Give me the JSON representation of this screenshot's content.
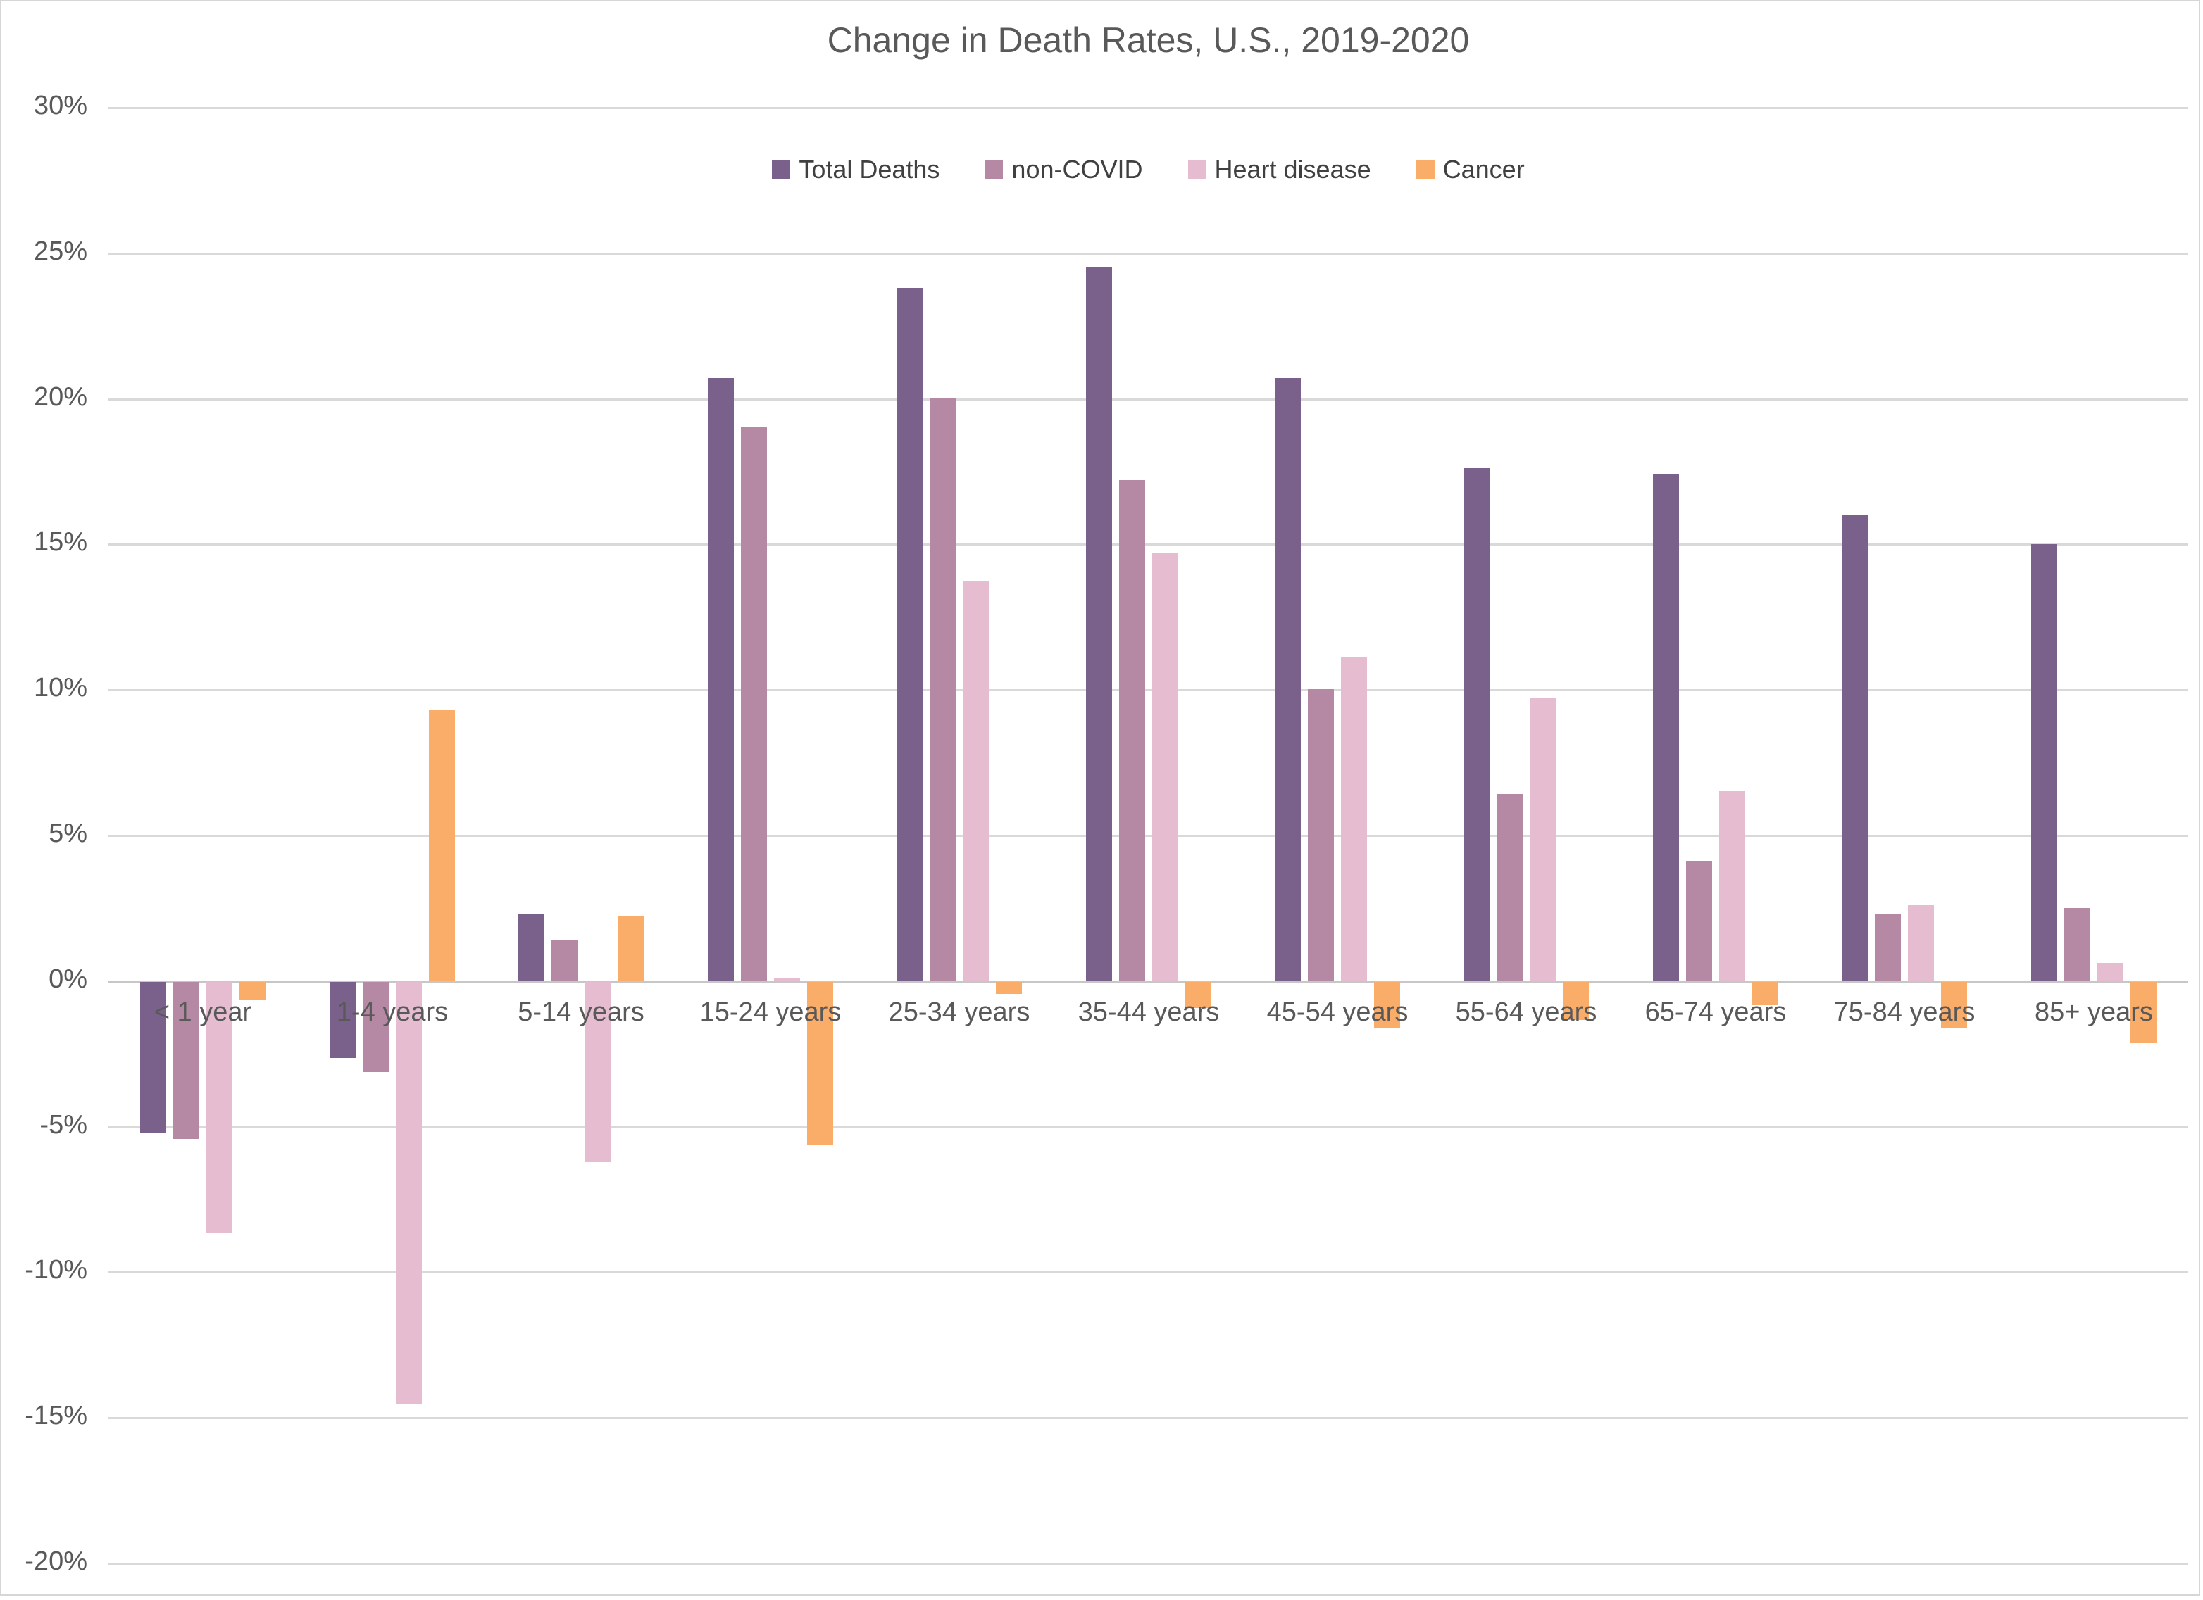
{
  "chart_data": {
    "type": "bar",
    "title": "Change in Death Rates, U.S., 2019-2020",
    "categories": [
      "< 1 year",
      "1-4 years",
      "5-14 years",
      "15-24 years",
      "25-34 years",
      "35-44 years",
      "45-54 years",
      "55-64 years",
      "65-74 years",
      "75-84 years",
      "85+ years"
    ],
    "series": [
      {
        "name": "Total Deaths",
        "color": "#79618C",
        "values": [
          -5.2,
          -2.6,
          2.3,
          20.7,
          23.8,
          24.5,
          20.7,
          17.6,
          17.4,
          16.0,
          15.0
        ]
      },
      {
        "name": "non-COVID",
        "color": "#B588A3",
        "values": [
          -5.4,
          -3.1,
          1.4,
          19.0,
          20.0,
          17.2,
          10.0,
          6.4,
          4.1,
          2.3,
          2.5
        ]
      },
      {
        "name": "Heart disease",
        "color": "#E6BDD0",
        "values": [
          -8.6,
          -14.5,
          -6.2,
          0.1,
          13.7,
          14.7,
          11.1,
          9.7,
          6.5,
          2.6,
          0.6
        ]
      },
      {
        "name": "Cancer",
        "color": "#FAAC69",
        "values": [
          -0.6,
          9.3,
          2.2,
          -5.6,
          -0.4,
          -0.9,
          -1.6,
          -1.3,
          -0.8,
          -1.6,
          -2.1
        ]
      }
    ],
    "ylim": [
      -20,
      30
    ],
    "ytick_step": 5,
    "ytick_labels": [
      "30%",
      "25%",
      "20%",
      "15%",
      "10%",
      "5%",
      "0%",
      "-5%",
      "-10%",
      "-15%",
      "-20%"
    ],
    "grid": true,
    "legend_position": "top-center",
    "xlabel": "",
    "ylabel": ""
  },
  "styles": {
    "title_color": "#595959",
    "axis_label_color": "#595959",
    "legend_text_color": "#404040",
    "gridline_color": "#D9D9D9",
    "zero_line_color": "#C7C7C7",
    "background": "#FFFFFF",
    "frame_border_color": "#D6D6D6"
  }
}
